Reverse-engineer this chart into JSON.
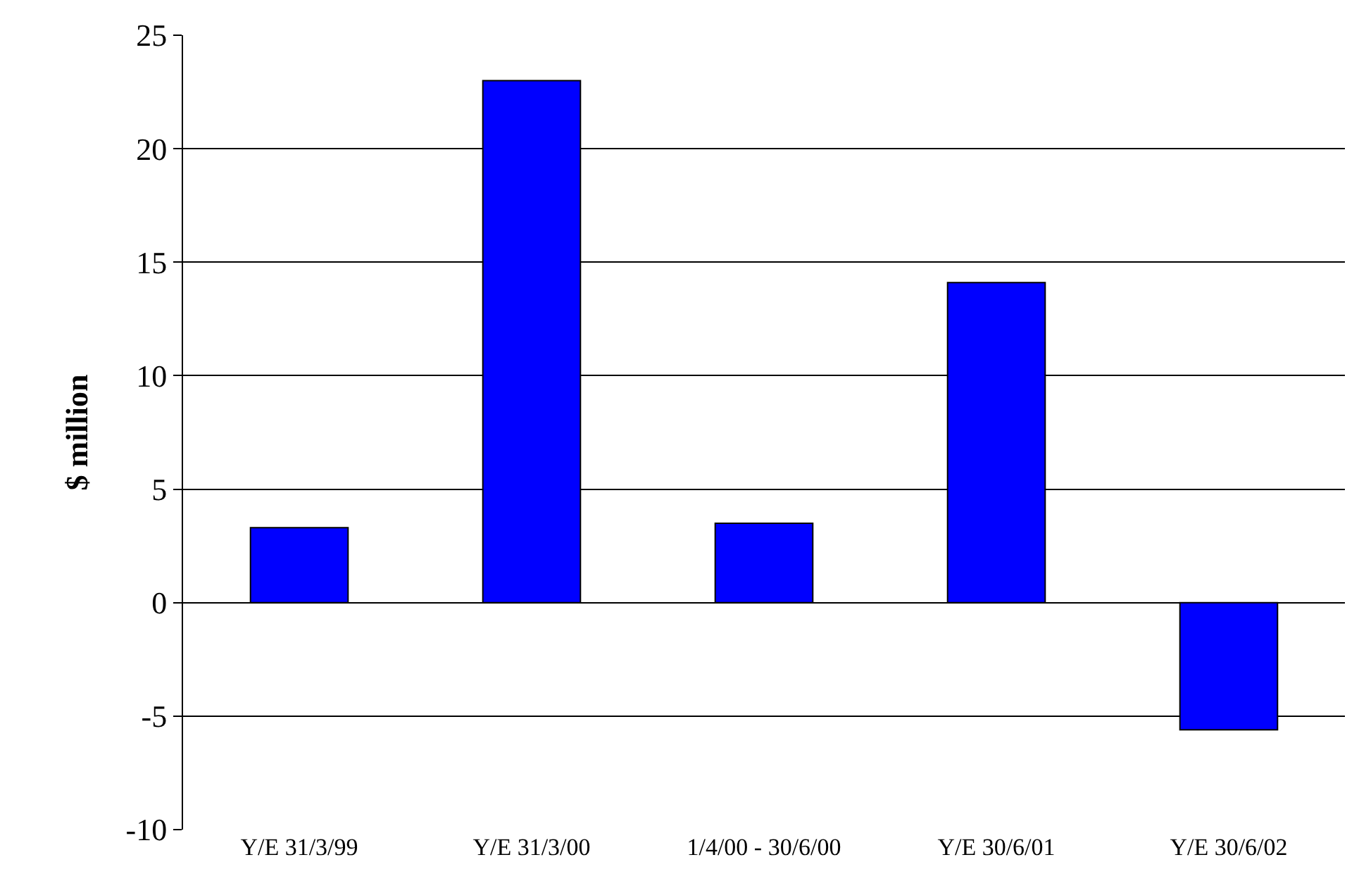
{
  "chart_data": {
    "type": "bar",
    "ylabel": "$ million",
    "categories": [
      "Y/E 31/3/99",
      "Y/E 31/3/00",
      "1/4/00 - 30/6/00",
      "Y/E 30/6/01",
      "Y/E 30/6/02"
    ],
    "series": [
      {
        "color": "#0000ff",
        "values": [
          3.3,
          23,
          3.5,
          14.1,
          -5.6
        ]
      }
    ],
    "ylim": [
      -10,
      25
    ],
    "yticks": [
      -10,
      -5,
      0,
      5,
      10,
      15,
      20,
      25
    ],
    "grid": "y"
  }
}
